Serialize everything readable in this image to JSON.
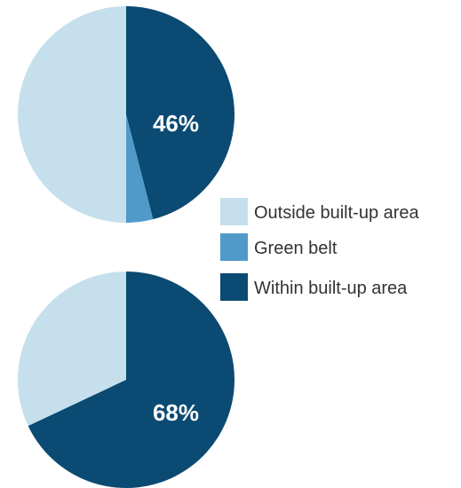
{
  "chart_data": [
    {
      "type": "pie",
      "title": "",
      "slices": [
        {
          "name": "Within built-up area",
          "value": 46,
          "label": "46%",
          "color": "#0b4a72"
        },
        {
          "name": "Green belt",
          "value": 4,
          "label": "",
          "color": "#4f9ac9"
        },
        {
          "name": "Outside built-up area",
          "value": 50,
          "label": "",
          "color": "#c5dfed"
        }
      ]
    },
    {
      "type": "pie",
      "title": "",
      "slices": [
        {
          "name": "Within built-up area",
          "value": 68,
          "label": "68%",
          "color": "#0b4a72"
        },
        {
          "name": "Green belt",
          "value": 0,
          "label": "",
          "color": "#4f9ac9"
        },
        {
          "name": "Outside built-up area",
          "value": 32,
          "label": "",
          "color": "#c5dfed"
        }
      ]
    }
  ],
  "legend": {
    "placement": "right",
    "items": [
      {
        "label": "Outside built-up area",
        "color": "#c5dfed"
      },
      {
        "label": "Green belt",
        "color": "#4f9ac9"
      },
      {
        "label": "Within built-up area",
        "color": "#0b4a72"
      }
    ]
  }
}
